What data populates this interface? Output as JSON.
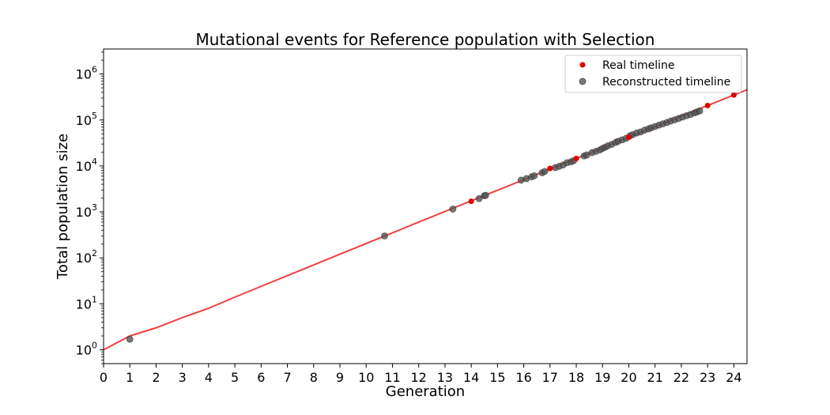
{
  "chart_data": {
    "type": "scatter",
    "title": "Mutational events for Reference population with Selection",
    "xlabel": "Generation",
    "ylabel": "Total population size",
    "xlim": [
      0,
      24.5
    ],
    "ylim": [
      0.5,
      3500000
    ],
    "yscale": "log",
    "x_ticks": [
      "0",
      "1",
      "2",
      "3",
      "4",
      "5",
      "6",
      "7",
      "8",
      "9",
      "10",
      "11",
      "12",
      "13",
      "14",
      "15",
      "16",
      "17",
      "18",
      "19",
      "20",
      "21",
      "22",
      "23",
      "24"
    ],
    "y_ticks": [
      {
        "value": 1,
        "base": "10",
        "exp": "0"
      },
      {
        "value": 10,
        "base": "10",
        "exp": "1"
      },
      {
        "value": 100,
        "base": "10",
        "exp": "2"
      },
      {
        "value": 1000,
        "base": "10",
        "exp": "3"
      },
      {
        "value": 10000,
        "base": "10",
        "exp": "4"
      },
      {
        "value": 100000,
        "base": "10",
        "exp": "5"
      },
      {
        "value": 1000000,
        "base": "10",
        "exp": "6"
      }
    ],
    "grid": false,
    "legend_position": "top-right",
    "colors": {
      "line": "#f04040",
      "real": "#e00000",
      "reconstructed": "#555555"
    },
    "growth_line": {
      "x": [
        0,
        1,
        2,
        3,
        4,
        5,
        6,
        7,
        8,
        9,
        10,
        11,
        12,
        13,
        14,
        15,
        16,
        17,
        18,
        19,
        20,
        21,
        22,
        23,
        24,
        24.5
      ],
      "y": [
        1,
        2,
        3,
        5,
        8,
        14,
        24,
        41,
        70,
        120,
        205,
        350,
        600,
        1020,
        1740,
        2960,
        5030,
        8550,
        14500,
        24700,
        42000,
        71400,
        121000,
        206000,
        350000,
        455000
      ]
    },
    "series": [
      {
        "name": "Real timeline",
        "x": [
          14,
          17,
          18,
          20,
          23,
          24
        ],
        "y": [
          1700,
          8800,
          14500,
          42000,
          206000,
          350000
        ]
      },
      {
        "name": "Reconstructed timeline",
        "x": [
          1,
          10.7,
          13.3,
          14.3,
          14.5,
          14.55,
          15.9,
          16.1,
          16.3,
          16.4,
          16.7,
          16.8,
          17.2,
          17.35,
          17.5,
          17.65,
          17.8,
          17.9,
          18.3,
          18.4,
          18.6,
          18.75,
          18.9,
          19.0,
          19.1,
          19.2,
          19.35,
          19.5,
          19.6,
          19.75,
          19.9,
          20.05,
          20.15,
          20.3,
          20.45,
          20.6,
          20.75,
          20.85,
          21.0,
          21.15,
          21.3,
          21.45,
          21.6,
          21.75,
          21.9,
          22.05,
          22.2,
          22.35,
          22.5,
          22.6,
          22.7
        ],
        "y": [
          1.7,
          300,
          1150,
          1950,
          2250,
          2300,
          4900,
          5300,
          5800,
          6100,
          7100,
          7600,
          9200,
          9800,
          10500,
          11800,
          12300,
          13000,
          16500,
          17300,
          19500,
          20800,
          22300,
          24000,
          25500,
          27300,
          29500,
          32500,
          34500,
          37000,
          40000,
          45500,
          48000,
          52000,
          55000,
          60000,
          64000,
          67500,
          72000,
          77500,
          82500,
          88000,
          95000,
          101000,
          108000,
          116000,
          124000,
          132000,
          143000,
          150000,
          158000
        ]
      }
    ]
  }
}
